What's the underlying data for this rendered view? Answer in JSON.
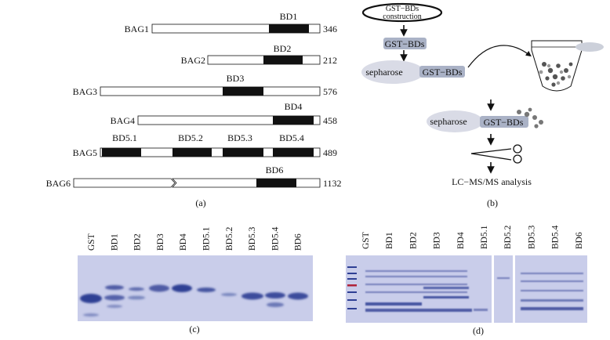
{
  "panel_a": {
    "label": "(a)",
    "proteins": [
      {
        "name": "BAG1",
        "length": "346",
        "domains": [
          {
            "label": "BD1"
          }
        ]
      },
      {
        "name": "BAG2",
        "length": "212",
        "domains": [
          {
            "label": "BD2"
          }
        ]
      },
      {
        "name": "BAG3",
        "length": "576",
        "domains": [
          {
            "label": "BD3"
          }
        ]
      },
      {
        "name": "BAG4",
        "length": "458",
        "domains": [
          {
            "label": "BD4"
          }
        ]
      },
      {
        "name": "BAG5",
        "length": "489",
        "domains": [
          {
            "label": "BD5.1"
          },
          {
            "label": "BD5.2"
          },
          {
            "label": "BD5.3"
          },
          {
            "label": "BD5.4"
          }
        ]
      },
      {
        "name": "BAG6",
        "length": "1132",
        "domains": [
          {
            "label": "BD6"
          }
        ]
      }
    ]
  },
  "panel_b": {
    "label": "(b)",
    "construct_line1": "GST−BDs",
    "construct_line2": "construction",
    "gst_bds_1": "GST−BDs",
    "sepharose_1": "sepharose",
    "gst_bds_2": "GST−BDs",
    "sepharose_2": "sepharose",
    "gst_bds_3": "GST−BDs",
    "analysis": "LC−MS/MS analysis"
  },
  "panel_c": {
    "label": "(c)",
    "lanes": [
      "GST",
      "BD1",
      "BD2",
      "BD3",
      "BD4",
      "BD5.1",
      "BD5.2",
      "BD5.3",
      "BD5.4",
      "BD6"
    ]
  },
  "panel_d": {
    "label": "(d)",
    "lanes": [
      "GST",
      "BD1",
      "BD2",
      "BD3",
      "BD4",
      "BD5.1",
      "BD5.2",
      "BD5.3",
      "BD5.4",
      "BD6"
    ]
  },
  "colors": {
    "domain": "#111111",
    "gel_bg": "#c9cdea",
    "band": "#2e3f94",
    "bead": "#d9dbe6",
    "tag": "#aab2c6"
  }
}
